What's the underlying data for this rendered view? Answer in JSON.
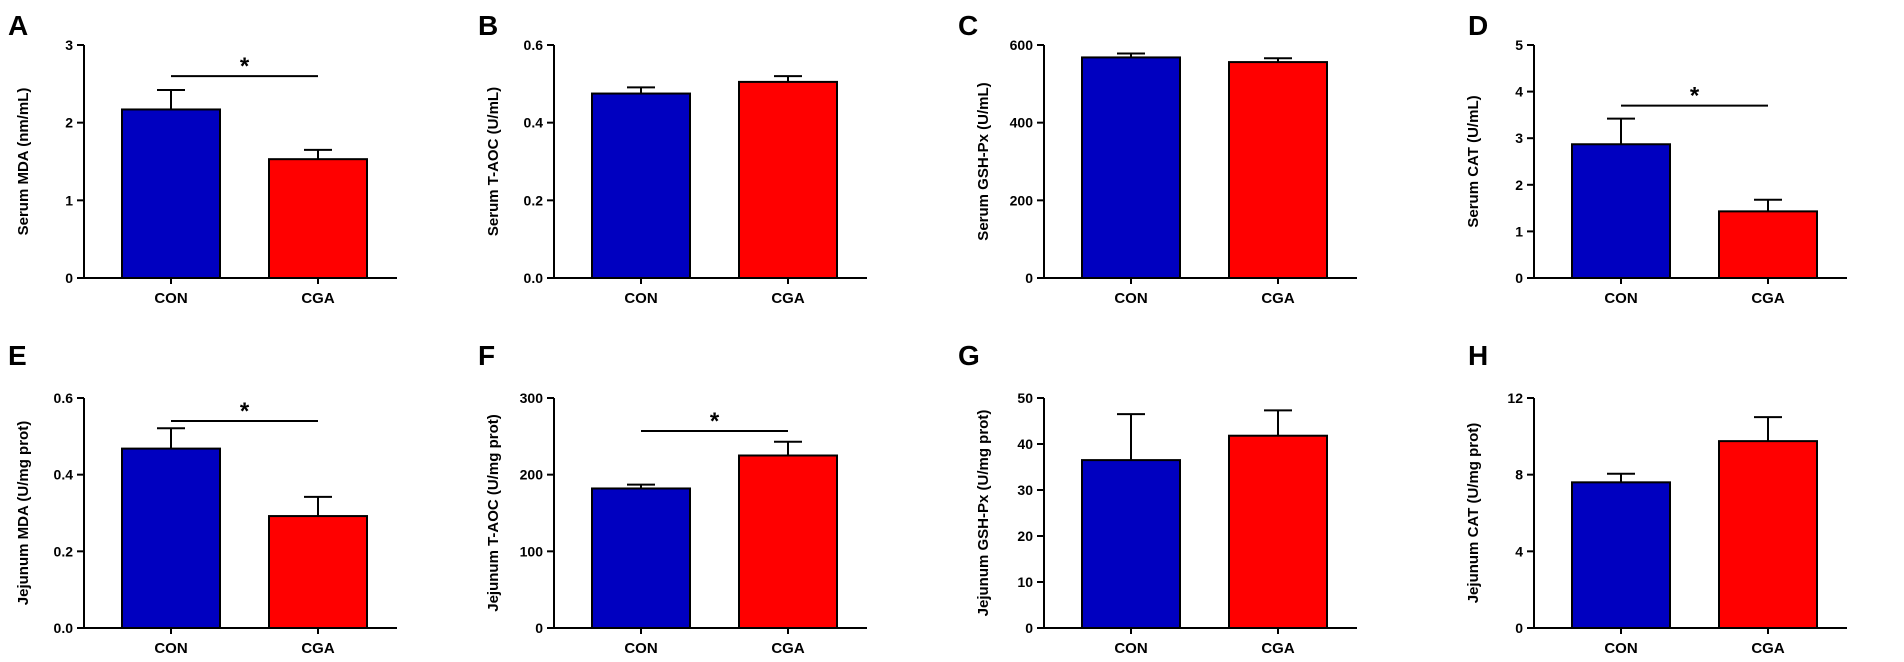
{
  "colors": {
    "con": "#0000c0",
    "cga": "#ff0000",
    "axis": "#000000"
  },
  "chart_data": [
    {
      "type": "bar",
      "panel": "A",
      "ylabel": "Serum MDA (nm/mL)",
      "categories": [
        "CON",
        "CGA"
      ],
      "values": [
        2.17,
        1.53
      ],
      "errors": [
        0.25,
        0.12
      ],
      "ylim": [
        0,
        3
      ],
      "ytick_values": [
        0,
        1,
        2,
        3
      ],
      "ytick_labels": [
        "0",
        "1",
        "2",
        "3"
      ],
      "significance": {
        "label": "*",
        "level": 2.6
      }
    },
    {
      "type": "bar",
      "panel": "B",
      "ylabel": "Serum T-AOC (U/mL)",
      "categories": [
        "CON",
        "CGA"
      ],
      "values": [
        0.475,
        0.505
      ],
      "errors": [
        0.016,
        0.015
      ],
      "ylim": [
        0,
        0.6
      ],
      "ytick_values": [
        0,
        0.2,
        0.4,
        0.6
      ],
      "ytick_labels": [
        "0.0",
        "0.2",
        "0.4",
        "0.6"
      ],
      "significance": null
    },
    {
      "type": "bar",
      "panel": "C",
      "ylabel": "Serum GSH-Px (U/mL)",
      "categories": [
        "CON",
        "CGA"
      ],
      "values": [
        568,
        556
      ],
      "errors": [
        10,
        10
      ],
      "ylim": [
        0,
        600
      ],
      "ytick_values": [
        0,
        200,
        400,
        600
      ],
      "ytick_labels": [
        "0",
        "200",
        "400",
        "600"
      ],
      "significance": null
    },
    {
      "type": "bar",
      "panel": "D",
      "ylabel": "Serum CAT (U/mL)",
      "categories": [
        "CON",
        "CGA"
      ],
      "values": [
        2.87,
        1.43
      ],
      "errors": [
        0.55,
        0.25
      ],
      "ylim": [
        0,
        5
      ],
      "ytick_values": [
        0,
        1,
        2,
        3,
        4,
        5
      ],
      "ytick_labels": [
        "0",
        "1",
        "2",
        "3",
        "4",
        "5"
      ],
      "significance": {
        "label": "*",
        "level": 3.7
      }
    },
    {
      "type": "bar",
      "panel": "E",
      "ylabel": "Jejunum MDA (U/mg prot)",
      "categories": [
        "CON",
        "CGA"
      ],
      "values": [
        0.468,
        0.292
      ],
      "errors": [
        0.053,
        0.05
      ],
      "ylim": [
        0,
        0.6
      ],
      "ytick_values": [
        0,
        0.2,
        0.4,
        0.6
      ],
      "ytick_labels": [
        "0.0",
        "0.2",
        "0.4",
        "0.6"
      ],
      "significance": {
        "label": "*",
        "level": 0.54
      }
    },
    {
      "type": "bar",
      "panel": "F",
      "ylabel": "Jejunum T-AOC (U/mg prot)",
      "categories": [
        "CON",
        "CGA"
      ],
      "values": [
        182,
        225
      ],
      "errors": [
        5,
        18
      ],
      "ylim": [
        0,
        300
      ],
      "ytick_values": [
        0,
        100,
        200,
        300
      ],
      "ytick_labels": [
        "0",
        "100",
        "200",
        "300"
      ],
      "significance": {
        "label": "*",
        "level": 257
      }
    },
    {
      "type": "bar",
      "panel": "G",
      "ylabel": "Jejunum GSH-Px (U/mg prot)",
      "categories": [
        "CON",
        "CGA"
      ],
      "values": [
        36.5,
        41.8
      ],
      "errors": [
        10.0,
        5.5
      ],
      "ylim": [
        0,
        50
      ],
      "ytick_values": [
        0,
        10,
        20,
        30,
        40,
        50
      ],
      "ytick_labels": [
        "0",
        "10",
        "20",
        "30",
        "40",
        "50"
      ],
      "significance": null
    },
    {
      "type": "bar",
      "panel": "H",
      "ylabel": "Jejunum CAT (U/mg prot)",
      "categories": [
        "CON",
        "CGA"
      ],
      "values": [
        7.6,
        9.75
      ],
      "errors": [
        0.45,
        1.25
      ],
      "ylim": [
        0,
        12
      ],
      "ytick_values": [
        0,
        4,
        8,
        12
      ],
      "ytick_labels": [
        "0",
        "4",
        "8",
        "12"
      ],
      "significance": null
    }
  ]
}
